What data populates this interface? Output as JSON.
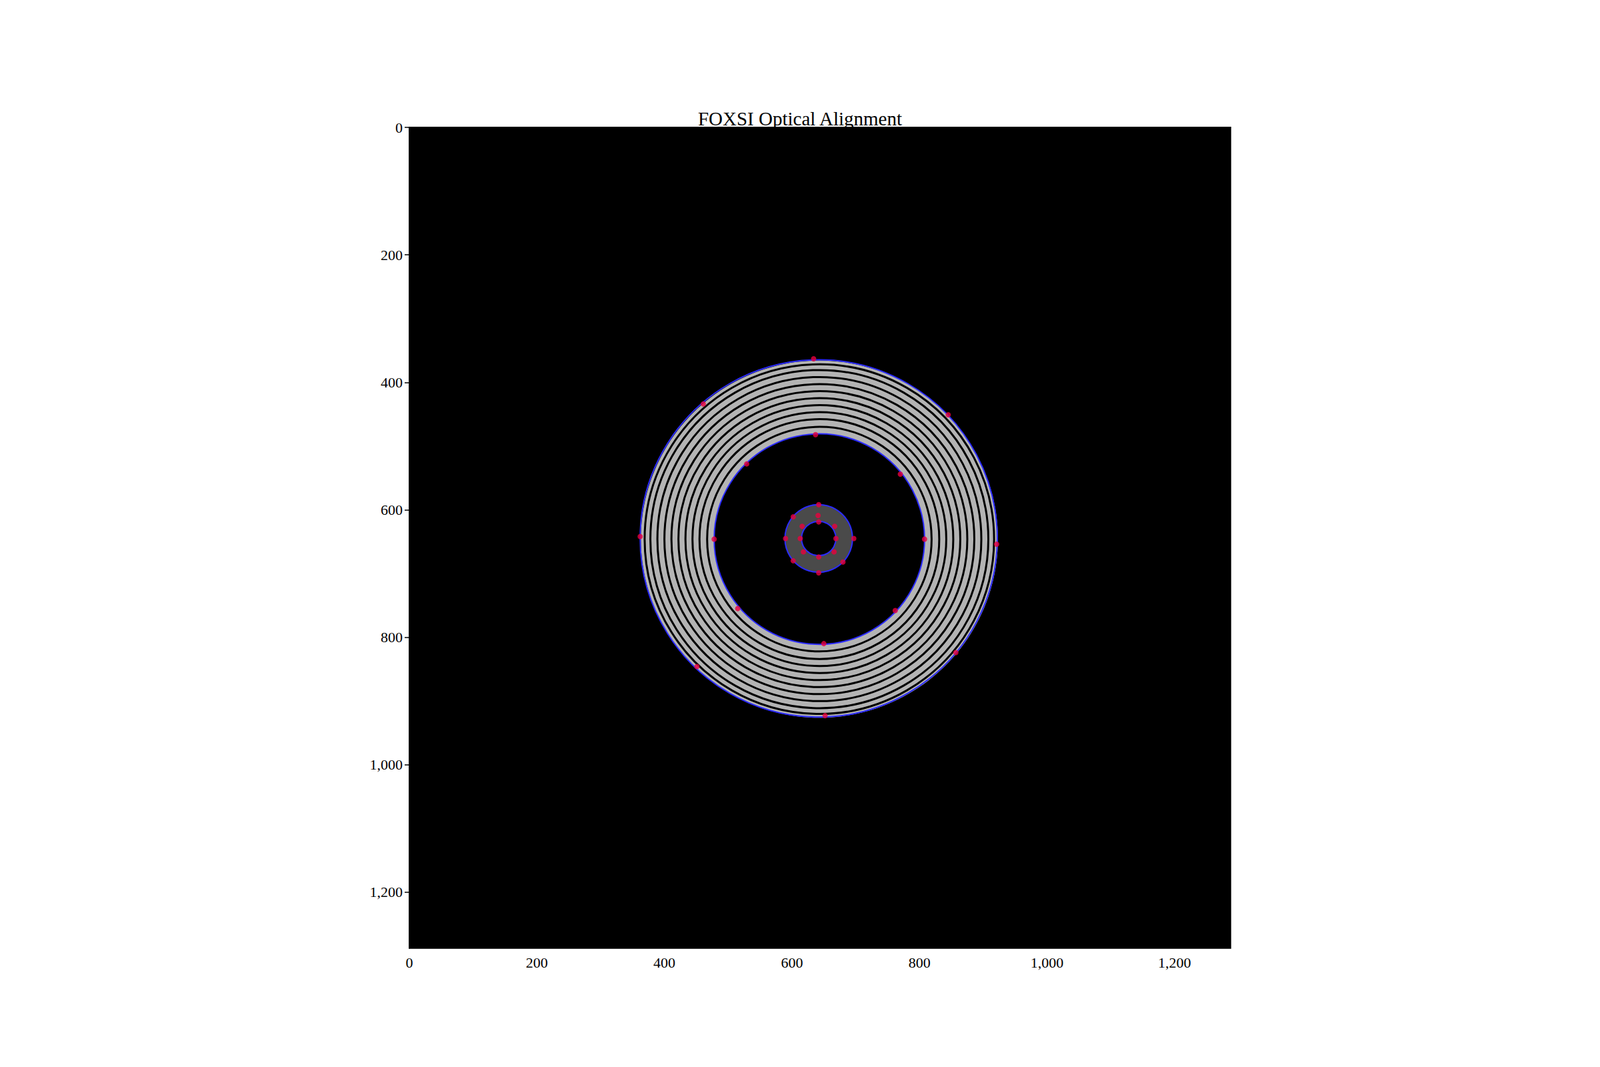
{
  "chart_data": {
    "type": "scatter",
    "title": "FOXSI Optical Alignment",
    "xlim": [
      0,
      1288
    ],
    "ylim": [
      1288,
      0
    ],
    "xticks": [
      0,
      200,
      400,
      600,
      800,
      1000,
      1200
    ],
    "yticks": [
      0,
      200,
      400,
      600,
      800,
      1000,
      1200
    ],
    "grid": false,
    "background": "#000000",
    "annuli": [
      {
        "center": [
          643,
          646
        ],
        "inner": 165,
        "outer": 280,
        "color": "#b4b4b4",
        "dark_rings": [
          176,
          188,
          199,
          210,
          221,
          232,
          243,
          254,
          265,
          274
        ],
        "ring_color": "#000000"
      },
      {
        "center": [
          642,
          645
        ],
        "inner": 27,
        "outer": 53,
        "color": "#4a4a4a",
        "dark_rings": [],
        "ring_color": "#000000"
      }
    ],
    "circles": {
      "color": "#2b2bff",
      "line_style": "solid",
      "items": [
        {
          "center": [
            642,
            645
          ],
          "radius": 280
        },
        {
          "center": [
            643,
            646
          ],
          "radius": 165
        },
        {
          "center": [
            642,
            645
          ],
          "radius": 53
        },
        {
          "center": [
            642,
            645
          ],
          "radius": 27
        }
      ]
    },
    "points": {
      "color": "#e8003d",
      "marker": "circle",
      "x": [
        634,
        461,
        845,
        362,
        921,
        451,
        857,
        652,
        637,
        529,
        770,
        478,
        808,
        515,
        762,
        650,
        642,
        602,
        641,
        590,
        697,
        602,
        680,
        642,
        642,
        616,
        667,
        613,
        669,
        618,
        666,
        642
      ],
      "y": [
        363,
        434,
        451,
        642,
        654,
        846,
        824,
        923,
        482,
        528,
        544,
        646,
        646,
        755,
        758,
        810,
        592,
        611,
        609,
        645,
        645,
        680,
        682,
        699,
        619,
        626,
        626,
        645,
        645,
        666,
        666,
        674
      ]
    }
  }
}
